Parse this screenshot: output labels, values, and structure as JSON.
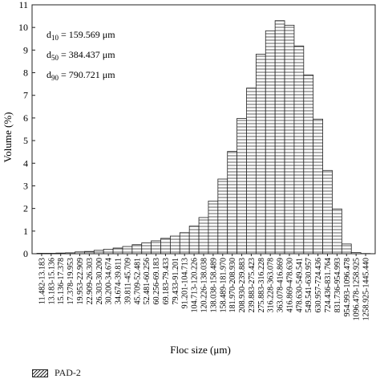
{
  "chart_data": {
    "type": "bar",
    "xlabel": "Floc size (μm)",
    "ylabel": "Volume (%)",
    "ylim": [
      0,
      11
    ],
    "yticks": [
      0,
      1,
      2,
      3,
      4,
      5,
      6,
      7,
      8,
      9,
      10,
      11
    ],
    "stats": [
      {
        "sym": "d",
        "sub": "10",
        "text": " = 159.569 μm"
      },
      {
        "sym": "d",
        "sub": "50",
        "text": " = 384.437 μm"
      },
      {
        "sym": "d",
        "sub": "90",
        "text": " = 790.721 μm"
      }
    ],
    "series": [
      {
        "name": "PAD-2",
        "pattern": "horizontal-hatch"
      }
    ],
    "categories": [
      "11.482-13.183",
      "13.183-15.136",
      "15.136-17.378",
      "17.378-19.953",
      "19.953-22.909",
      "22.909-26.303",
      "26.303-30.200",
      "30.200-34.674",
      "34.674-39.811",
      "39.811-45.709",
      "45.709-52.481",
      "52.481-60.256",
      "60.256-69.183",
      "69.183-79.433",
      "79.433-91.201",
      "91.201-104.713",
      "104.713-120.226",
      "120.226-138.038",
      "138.038-158.489",
      "158.489-181.970",
      "181.970-208.930",
      "208.930-239.883",
      "239.883-275.423",
      "275.883-316.228",
      "316.228-363.078",
      "363.078-416.869",
      "416.869-478.630",
      "478.630-549.541",
      "549.541-630.957",
      "630.957-724.436",
      "724.436-831.764",
      "831.736-954.993",
      "954.993-1096.478",
      "1096.478-1258.925",
      "1258.925-1445.440"
    ],
    "values": [
      0.02,
      0.02,
      0.03,
      0.04,
      0.08,
      0.1,
      0.15,
      0.2,
      0.25,
      0.32,
      0.4,
      0.48,
      0.57,
      0.68,
      0.78,
      0.93,
      1.22,
      1.6,
      2.33,
      3.3,
      4.52,
      5.98,
      7.32,
      8.82,
      9.85,
      10.3,
      10.1,
      9.18,
      7.9,
      5.95,
      3.68,
      1.98,
      0.43,
      0.05,
      0.01
    ]
  }
}
